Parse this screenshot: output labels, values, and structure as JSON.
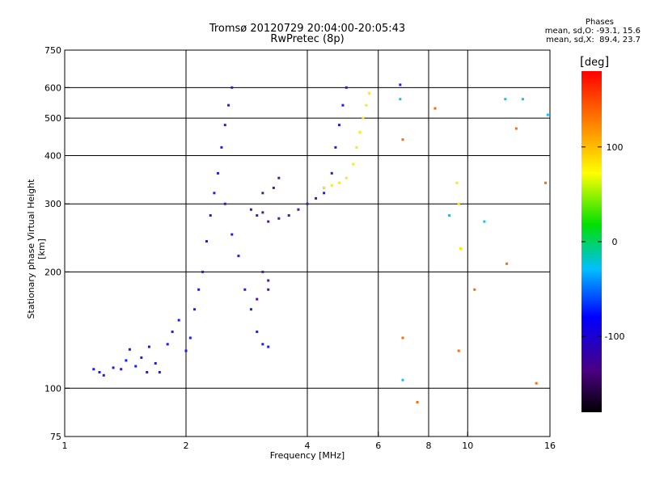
{
  "title": {
    "line1": "Tromsø 20120729 20:04:00-20:05:43",
    "line2": "RwPretec (8p)"
  },
  "phase_legend": {
    "heading": "Phases",
    "o_line": "mean, sd,O: -93.1, 15.6",
    "x_line": "mean, sd,X:  89.4, 23.7"
  },
  "colorbar": {
    "unit": "deg",
    "ticks": [
      100,
      0,
      -100
    ],
    "range": [
      -180,
      180
    ],
    "colormap": "rainbow (black-purple-blue-cyan-green-yellow-orange-red)"
  },
  "chart_data": {
    "type": "scatter",
    "xlabel": "Frequency [MHz]",
    "ylabel": "Stationary phase Virtual Height [km]",
    "xscale": "log",
    "yscale": "log",
    "xlim": [
      1,
      16
    ],
    "ylim": [
      75,
      750
    ],
    "x_ticks": [
      1,
      2,
      4,
      6,
      8,
      10,
      16
    ],
    "y_ticks": [
      75,
      100,
      200,
      300,
      400,
      500,
      600,
      750
    ],
    "grid": "major lines at x=2,4,6,8,10 MHz and y=100,200,300,400,500,600 km",
    "series": [
      {
        "color": "#1a1aff",
        "points": [
          [
            1.18,
            112
          ],
          [
            1.22,
            110
          ],
          [
            1.25,
            108
          ],
          [
            1.32,
            113
          ],
          [
            1.38,
            112
          ],
          [
            1.42,
            118
          ],
          [
            1.45,
            126
          ],
          [
            1.5,
            114
          ],
          [
            1.55,
            120
          ],
          [
            1.6,
            110
          ],
          [
            1.62,
            128
          ],
          [
            1.68,
            116
          ],
          [
            1.72,
            110
          ],
          [
            1.8,
            130
          ],
          [
            1.85,
            140
          ],
          [
            1.92,
            150
          ],
          [
            2.0,
            125
          ],
          [
            2.05,
            135
          ],
          [
            2.1,
            160
          ],
          [
            2.15,
            180
          ],
          [
            2.2,
            200
          ],
          [
            2.25,
            240
          ],
          [
            2.3,
            280
          ],
          [
            2.35,
            320
          ],
          [
            2.4,
            360
          ],
          [
            2.45,
            420
          ],
          [
            2.5,
            480
          ],
          [
            2.55,
            540
          ],
          [
            2.6,
            600
          ],
          [
            2.5,
            300
          ],
          [
            2.6,
            250
          ],
          [
            2.7,
            220
          ],
          [
            2.8,
            180
          ],
          [
            2.9,
            160
          ],
          [
            3.0,
            140
          ],
          [
            3.1,
            130
          ],
          [
            3.2,
            128
          ],
          [
            4.4,
            320
          ],
          [
            4.6,
            360
          ],
          [
            4.7,
            420
          ],
          [
            4.8,
            480
          ],
          [
            4.9,
            540
          ],
          [
            5.0,
            600
          ],
          [
            6.8,
            610
          ]
        ]
      },
      {
        "color": "#4b1a9a",
        "points": [
          [
            2.9,
            290
          ],
          [
            3.0,
            280
          ],
          [
            3.1,
            285
          ],
          [
            3.2,
            270
          ],
          [
            3.4,
            275
          ],
          [
            3.6,
            280
          ],
          [
            3.8,
            290
          ],
          [
            4.0,
            300
          ],
          [
            4.2,
            310
          ],
          [
            4.4,
            330
          ],
          [
            3.1,
            200
          ],
          [
            3.2,
            190
          ],
          [
            3.2,
            180
          ],
          [
            3.0,
            170
          ],
          [
            3.1,
            320
          ],
          [
            3.3,
            330
          ],
          [
            3.4,
            350
          ]
        ]
      },
      {
        "color": "#ffea00",
        "points": [
          [
            4.4,
            330
          ],
          [
            4.6,
            335
          ],
          [
            4.8,
            340
          ],
          [
            5.0,
            350
          ],
          [
            5.2,
            380
          ],
          [
            5.3,
            420
          ],
          [
            5.4,
            460
          ],
          [
            5.5,
            500
          ],
          [
            5.6,
            540
          ],
          [
            5.7,
            580
          ],
          [
            9.4,
            340
          ],
          [
            9.5,
            300
          ],
          [
            9.6,
            230
          ]
        ]
      },
      {
        "color": "#ff6a00",
        "points": [
          [
            6.9,
            440
          ],
          [
            6.9,
            135
          ],
          [
            8.3,
            530
          ],
          [
            9.5,
            125
          ],
          [
            10.4,
            180
          ],
          [
            12.5,
            210
          ],
          [
            13.2,
            470
          ],
          [
            14.8,
            103
          ],
          [
            15.6,
            340
          ],
          [
            7.5,
            92
          ]
        ]
      },
      {
        "color": "#00c8ff",
        "points": [
          [
            6.8,
            560
          ],
          [
            6.9,
            105
          ],
          [
            9.0,
            280
          ],
          [
            11.0,
            270
          ],
          [
            12.4,
            560
          ],
          [
            13.7,
            560
          ],
          [
            15.8,
            510
          ]
        ]
      }
    ]
  }
}
